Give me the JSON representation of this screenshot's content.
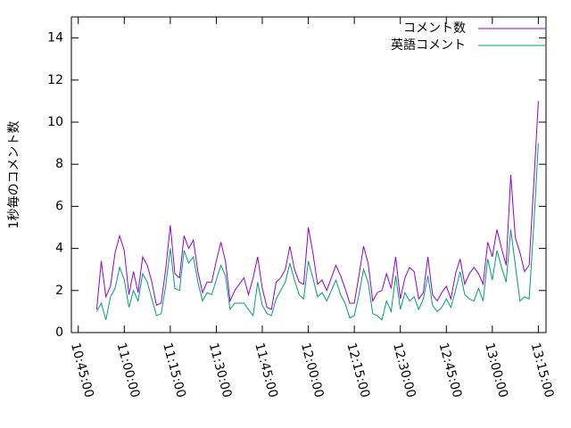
{
  "chart_data": {
    "type": "line",
    "y_label": "1秒毎のコメント数",
    "x": [
      "10:51:00",
      "10:52:30",
      "10:54:00",
      "10:55:30",
      "10:57:00",
      "10:58:30",
      "11:00:00",
      "11:01:30",
      "11:03:00",
      "11:04:30",
      "11:06:00",
      "11:07:30",
      "11:09:00",
      "11:10:30",
      "11:12:00",
      "11:13:30",
      "11:15:00",
      "11:16:30",
      "11:18:00",
      "11:19:30",
      "11:21:00",
      "11:22:30",
      "11:24:00",
      "11:25:30",
      "11:27:00",
      "11:28:30",
      "11:30:00",
      "11:31:30",
      "11:33:00",
      "11:34:30",
      "11:36:00",
      "11:37:30",
      "11:39:00",
      "11:40:30",
      "11:42:00",
      "11:43:30",
      "11:45:00",
      "11:46:30",
      "11:48:00",
      "11:49:30",
      "11:51:00",
      "11:52:30",
      "11:54:00",
      "11:55:30",
      "11:57:00",
      "11:58:30",
      "12:00:00",
      "12:01:30",
      "12:03:00",
      "12:04:30",
      "12:06:00",
      "12:07:30",
      "12:09:00",
      "12:10:30",
      "12:12:00",
      "12:13:30",
      "12:15:00",
      "12:16:30",
      "12:18:00",
      "12:19:30",
      "12:21:00",
      "12:22:30",
      "12:24:00",
      "12:25:30",
      "12:27:00",
      "12:28:30",
      "12:30:00",
      "12:31:30",
      "12:33:00",
      "12:34:30",
      "12:36:00",
      "12:37:30",
      "12:39:00",
      "12:40:30",
      "12:42:00",
      "12:43:30",
      "12:45:00",
      "12:46:30",
      "12:48:00",
      "12:49:30",
      "12:51:00",
      "12:52:30",
      "12:54:00",
      "12:55:30",
      "12:57:00",
      "12:58:30",
      "13:00:00",
      "13:01:30",
      "13:03:00",
      "13:04:30",
      "13:06:00",
      "13:07:30",
      "13:09:00",
      "13:10:30",
      "13:12:00",
      "13:13:30",
      "13:15:00"
    ],
    "series": [
      {
        "name": "コメント数",
        "color": "#9400d3",
        "values": [
          1.1,
          3.4,
          1.7,
          2.2,
          3.8,
          4.6,
          3.9,
          1.8,
          2.9,
          1.9,
          3.6,
          3.2,
          2.4,
          1.3,
          1.4,
          3.0,
          5.1,
          2.8,
          2.6,
          4.6,
          4.0,
          4.4,
          2.9,
          1.9,
          2.4,
          2.4,
          3.4,
          4.3,
          3.4,
          1.5,
          2.0,
          2.3,
          2.6,
          1.8,
          2.6,
          3.6,
          2.1,
          1.2,
          1.1,
          2.4,
          2.6,
          3.0,
          4.1,
          3.0,
          2.4,
          2.3,
          5.0,
          3.8,
          2.3,
          2.5,
          2.0,
          2.6,
          3.2,
          2.7,
          2.1,
          1.4,
          1.4,
          2.7,
          4.1,
          3.3,
          1.5,
          1.9,
          2.0,
          2.8,
          2.1,
          3.6,
          1.6,
          2.6,
          3.1,
          2.9,
          1.6,
          1.9,
          3.6,
          1.8,
          1.5,
          1.9,
          2.2,
          1.6,
          2.8,
          3.5,
          2.3,
          2.8,
          3.1,
          2.8,
          2.3,
          4.3,
          3.6,
          4.9,
          4.0,
          3.2,
          7.5,
          4.5,
          3.8,
          2.9,
          3.2,
          7.0,
          11.0
        ]
      },
      {
        "name": "英語コメント",
        "color": "#009e73",
        "values": [
          1.0,
          1.4,
          0.6,
          1.7,
          2.1,
          3.1,
          2.5,
          1.2,
          2.0,
          1.5,
          2.8,
          2.4,
          1.6,
          0.8,
          0.9,
          2.2,
          4.0,
          2.1,
          2.0,
          3.9,
          3.3,
          3.6,
          2.4,
          1.5,
          1.9,
          1.8,
          2.5,
          3.2,
          2.7,
          1.1,
          1.4,
          1.4,
          1.4,
          1.1,
          0.8,
          2.4,
          1.3,
          0.9,
          0.8,
          1.6,
          2.0,
          2.4,
          3.3,
          2.5,
          1.8,
          1.6,
          3.4,
          2.6,
          1.7,
          1.9,
          1.5,
          2.0,
          2.5,
          1.8,
          1.4,
          0.7,
          0.8,
          1.8,
          3.0,
          2.4,
          0.9,
          0.8,
          0.6,
          1.5,
          1.0,
          2.7,
          1.1,
          1.9,
          1.5,
          1.7,
          1.1,
          1.6,
          2.7,
          1.3,
          1.0,
          1.2,
          1.6,
          1.2,
          2.0,
          2.9,
          1.8,
          1.6,
          1.5,
          2.1,
          1.5,
          3.5,
          2.5,
          3.9,
          3.1,
          2.4,
          4.9,
          3.2,
          1.5,
          1.7,
          1.6,
          5.0,
          9.0
        ]
      }
    ],
    "xlim": [
      "10:42:45",
      "13:17:30"
    ],
    "xticks": [
      "10:45:00",
      "11:00:00",
      "11:15:00",
      "11:30:00",
      "11:45:00",
      "12:00:00",
      "12:15:00",
      "12:30:00",
      "12:45:00",
      "13:00:00",
      "13:15:00"
    ],
    "ylim": [
      0,
      15
    ],
    "yticks": [
      0,
      2,
      4,
      6,
      8,
      10,
      12,
      14
    ],
    "legend": "top-right"
  }
}
